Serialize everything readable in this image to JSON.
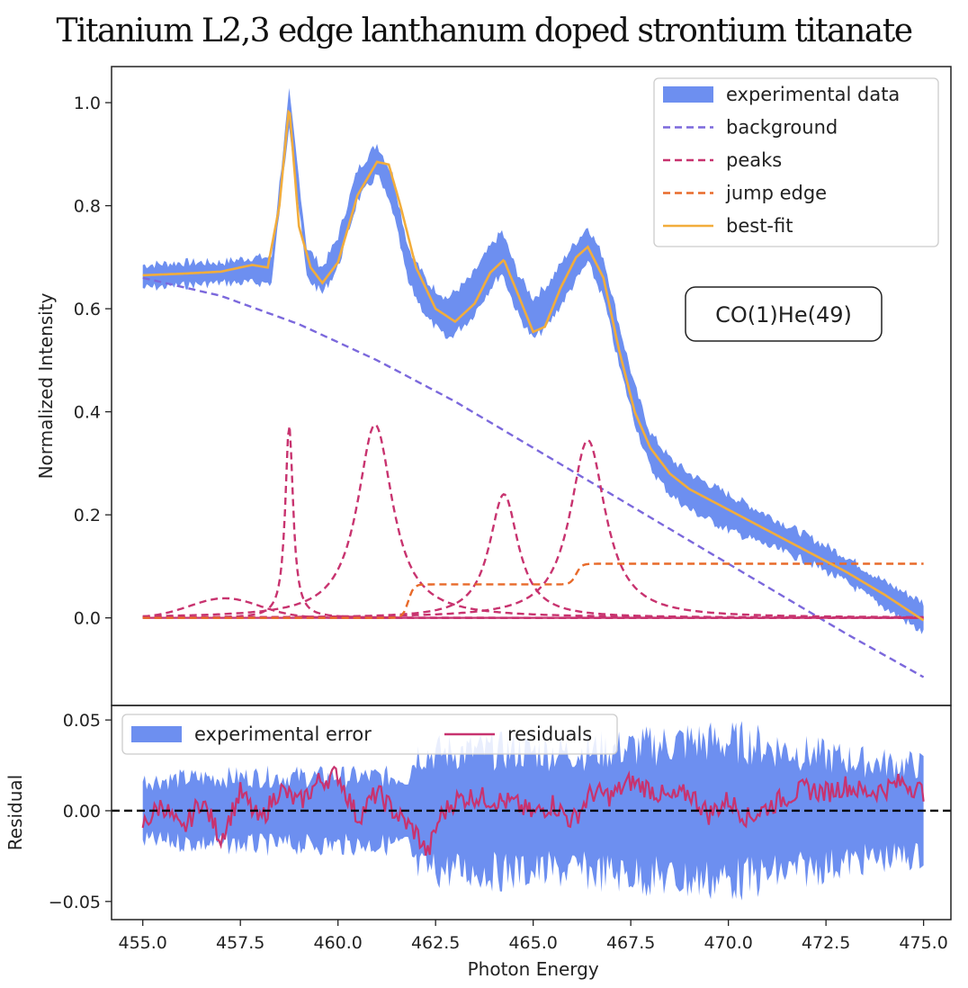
{
  "chart_data": [
    {
      "type": "line",
      "title": "Titanium L2,3 edge lanthanum doped strontium titanate",
      "xlabel": "Photon Energy",
      "ylabel": "Normalized Intensity",
      "xlim": [
        454.2,
        475.7
      ],
      "ylim": [
        -0.17,
        1.07
      ],
      "xticks": [
        455.0,
        457.5,
        460.0,
        462.5,
        465.0,
        467.5,
        470.0,
        472.5,
        475.0
      ],
      "xtick_labels": [
        "455.0",
        "457.5",
        "460.0",
        "462.5",
        "465.0",
        "467.5",
        "470.0",
        "472.5",
        "475.0"
      ],
      "yticks": [
        0.0,
        0.2,
        0.4,
        0.6,
        0.8,
        1.0
      ],
      "ytick_labels": [
        "0.0",
        "0.2",
        "0.4",
        "0.6",
        "0.8",
        "1.0"
      ],
      "annotation": "CO(1)He(49)",
      "legend_position": "top-right",
      "series": [
        {
          "name": "experimental data",
          "style": "band",
          "color": "#6d8ff0",
          "x": [
            455.0,
            456.0,
            457.0,
            457.8,
            458.3,
            458.75,
            459.2,
            459.6,
            460.0,
            460.5,
            461.0,
            461.4,
            461.8,
            462.3,
            462.8,
            463.4,
            463.9,
            464.2,
            464.6,
            465.0,
            465.4,
            465.9,
            466.4,
            466.8,
            467.2,
            467.6,
            468.0,
            468.5,
            469.0,
            470.0,
            471.0,
            472.0,
            473.0,
            474.0,
            475.0
          ],
          "upper": [
            0.685,
            0.69,
            0.69,
            0.7,
            0.7,
            1.02,
            0.72,
            0.68,
            0.74,
            0.87,
            0.92,
            0.86,
            0.72,
            0.65,
            0.62,
            0.66,
            0.72,
            0.75,
            0.67,
            0.62,
            0.65,
            0.71,
            0.76,
            0.7,
            0.57,
            0.45,
            0.36,
            0.31,
            0.28,
            0.24,
            0.2,
            0.16,
            0.12,
            0.07,
            0.03
          ],
          "lower": [
            0.64,
            0.645,
            0.65,
            0.65,
            0.65,
            0.96,
            0.66,
            0.63,
            0.68,
            0.81,
            0.86,
            0.79,
            0.65,
            0.58,
            0.54,
            0.58,
            0.64,
            0.67,
            0.59,
            0.54,
            0.57,
            0.63,
            0.69,
            0.62,
            0.49,
            0.38,
            0.29,
            0.24,
            0.21,
            0.17,
            0.14,
            0.11,
            0.07,
            0.02,
            -0.03
          ]
        },
        {
          "name": "background",
          "style": "dashed",
          "color": "#7b68dc",
          "x": [
            455.0,
            457.0,
            459.0,
            461.0,
            463.0,
            465.0,
            467.0,
            469.0,
            471.0,
            473.0,
            475.0
          ],
          "y": [
            0.66,
            0.625,
            0.57,
            0.5,
            0.42,
            0.33,
            0.24,
            0.15,
            0.06,
            -0.03,
            -0.115
          ]
        },
        {
          "name": "peaks",
          "style": "dashed",
          "color": "#c8336f",
          "components": [
            {
              "center": 457.1,
              "amplitude": 0.038,
              "width": 0.9,
              "shape": "gauss"
            },
            {
              "center": 458.75,
              "amplitude": 0.375,
              "width": 0.12,
              "shape": "lorentz"
            },
            {
              "center": 460.95,
              "amplitude": 0.375,
              "width": 0.55,
              "shape": "lorentz"
            },
            {
              "center": 464.25,
              "amplitude": 0.24,
              "width": 0.45,
              "shape": "lorentz"
            },
            {
              "center": 466.4,
              "amplitude": 0.345,
              "width": 0.55,
              "shape": "lorentz"
            }
          ]
        },
        {
          "name": "jump edge",
          "style": "dashed",
          "color": "#e86a2a",
          "steps": [
            {
              "position": 461.8,
              "height": 0.065
            },
            {
              "position": 466.1,
              "height": 0.04
            }
          ]
        },
        {
          "name": "best-fit",
          "style": "solid",
          "color": "#f2ad3c",
          "x": [
            455.0,
            456.0,
            457.0,
            457.8,
            458.2,
            458.5,
            458.75,
            459.0,
            459.3,
            459.6,
            460.0,
            460.5,
            461.0,
            461.3,
            461.6,
            462.0,
            462.5,
            463.0,
            463.5,
            463.9,
            464.25,
            464.6,
            465.0,
            465.3,
            465.7,
            466.1,
            466.4,
            466.8,
            467.2,
            467.6,
            468.0,
            468.5,
            469.0,
            470.0,
            471.0,
            472.0,
            473.0,
            474.0,
            475.0
          ],
          "y": [
            0.665,
            0.668,
            0.672,
            0.685,
            0.68,
            0.8,
            0.995,
            0.76,
            0.68,
            0.65,
            0.69,
            0.82,
            0.885,
            0.88,
            0.8,
            0.68,
            0.6,
            0.575,
            0.61,
            0.67,
            0.695,
            0.63,
            0.555,
            0.565,
            0.64,
            0.7,
            0.72,
            0.66,
            0.52,
            0.4,
            0.33,
            0.28,
            0.25,
            0.21,
            0.17,
            0.13,
            0.09,
            0.045,
            -0.005
          ]
        }
      ]
    },
    {
      "type": "line",
      "xlabel": "Photon Energy",
      "ylabel": "Residual",
      "xlim": [
        454.2,
        475.7
      ],
      "ylim": [
        -0.06,
        0.058
      ],
      "yticks": [
        -0.05,
        0.0,
        0.05
      ],
      "ytick_labels": [
        "−0.05",
        "0.00",
        "0.05"
      ],
      "legend_position": "top-left",
      "series": [
        {
          "name": "experimental error",
          "style": "band",
          "color": "#6d8ff0",
          "x": [
            455.0,
            456.5,
            458.0,
            460.0,
            461.8,
            462.0,
            464.0,
            466.0,
            467.5,
            469.0,
            470.5,
            472.0,
            473.5,
            475.0
          ],
          "upper": [
            0.022,
            0.024,
            0.025,
            0.025,
            0.025,
            0.042,
            0.044,
            0.043,
            0.046,
            0.051,
            0.05,
            0.042,
            0.036,
            0.033
          ],
          "lower": [
            -0.022,
            -0.024,
            -0.025,
            -0.025,
            -0.025,
            -0.043,
            -0.045,
            -0.044,
            -0.047,
            -0.051,
            -0.05,
            -0.043,
            -0.036,
            -0.033
          ]
        },
        {
          "name": "residuals",
          "style": "solid",
          "color": "#c8336f",
          "x": [
            455.0,
            455.5,
            456.0,
            456.5,
            457.0,
            457.5,
            458.0,
            458.5,
            459.0,
            459.5,
            460.0,
            460.5,
            461.0,
            461.5,
            462.0,
            462.3,
            462.6,
            463.0,
            463.5,
            464.0,
            464.5,
            465.0,
            465.5,
            466.0,
            466.5,
            467.0,
            467.5,
            468.0,
            468.5,
            469.0,
            469.5,
            470.0,
            470.5,
            471.0,
            471.5,
            472.0,
            472.5,
            473.0,
            473.5,
            474.0,
            474.5,
            475.0
          ],
          "y": [
            -0.008,
            0.004,
            -0.012,
            0.006,
            -0.015,
            0.01,
            -0.006,
            0.012,
            0.004,
            0.016,
            0.02,
            -0.004,
            0.01,
            -0.002,
            -0.012,
            -0.024,
            -0.004,
            0.006,
            0.008,
            0.006,
            0.004,
            -0.002,
            0.004,
            -0.006,
            0.01,
            0.008,
            0.016,
            0.012,
            0.006,
            0.01,
            -0.002,
            0.006,
            -0.004,
            0.002,
            0.008,
            0.012,
            0.01,
            0.014,
            0.01,
            0.012,
            0.016,
            0.01
          ]
        },
        {
          "name": "zero line",
          "style": "dashed",
          "color": "#000000",
          "x": [
            454.2,
            475.7
          ],
          "y": [
            0.0,
            0.0
          ]
        }
      ]
    }
  ]
}
